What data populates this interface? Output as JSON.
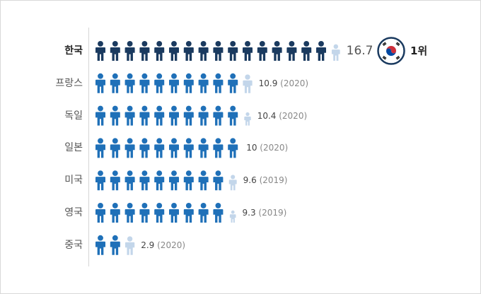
{
  "chart_data": {
    "type": "pictograph",
    "colors": {
      "korea": "#1a3a5f",
      "others": "#1f70b8",
      "fraction": "#c3d6ea"
    },
    "rows": [
      {
        "label": "한국",
        "value": 16.7,
        "value_text": "16.7",
        "year_text": "",
        "highlight": true
      },
      {
        "label": "프랑스",
        "value": 10.9,
        "value_text": "10.9",
        "year_text": "(2020)",
        "highlight": false
      },
      {
        "label": "독일",
        "value": 10.4,
        "value_text": "10.4",
        "year_text": "(2020)",
        "highlight": false
      },
      {
        "label": "일본",
        "value": 10,
        "value_text": "10",
        "year_text": "(2020)",
        "highlight": false
      },
      {
        "label": "미국",
        "value": 9.6,
        "value_text": "9.6",
        "year_text": "(2019)",
        "highlight": false
      },
      {
        "label": "영국",
        "value": 9.3,
        "value_text": "9.3",
        "year_text": "(2019)",
        "highlight": false
      },
      {
        "label": "중국",
        "value": 2.9,
        "value_text": "2.9",
        "year_text": "(2020)",
        "highlight": false
      }
    ],
    "rank_text": "1위",
    "flag_icon": "south-korea-flag-icon"
  }
}
